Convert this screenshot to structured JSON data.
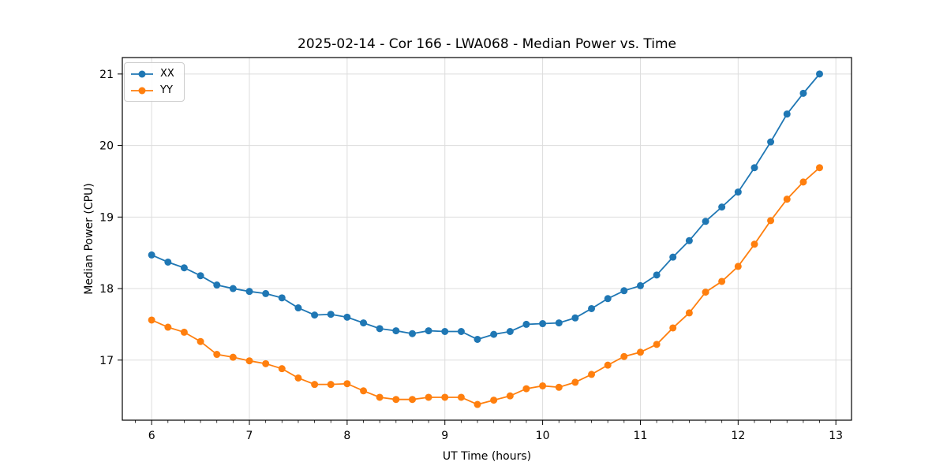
{
  "chart_data": {
    "type": "line",
    "title": "2025-02-14 - Cor 166 - LWA068 - Median Power vs. Time",
    "xlabel": "UT Time (hours)",
    "ylabel": "Median Power (CPU)",
    "xlim": [
      5.7,
      13.16
    ],
    "ylim": [
      16.16,
      21.23
    ],
    "x_ticks": [
      6,
      7,
      8,
      9,
      10,
      11,
      12,
      13
    ],
    "y_ticks": [
      17,
      18,
      19,
      20,
      21
    ],
    "x_minor_step": 0.1666667,
    "grid": true,
    "grid_color": "#dddddd",
    "legend_position": "upper left",
    "x": [
      6,
      6.167,
      6.333,
      6.5,
      6.667,
      6.833,
      7,
      7.167,
      7.333,
      7.5,
      7.667,
      7.833,
      8,
      8.167,
      8.333,
      8.5,
      8.667,
      8.833,
      9,
      9.167,
      9.333,
      9.5,
      9.667,
      9.833,
      10,
      10.167,
      10.333,
      10.5,
      10.667,
      10.833,
      11,
      11.167,
      11.333,
      11.5,
      11.667,
      11.833,
      12,
      12.167,
      12.333,
      12.5,
      12.667,
      12.833
    ],
    "series": [
      {
        "name": "XX",
        "color": "#1f77b4",
        "values": [
          18.47,
          18.37,
          18.29,
          18.18,
          18.05,
          18.0,
          17.96,
          17.93,
          17.87,
          17.73,
          17.63,
          17.64,
          17.6,
          17.52,
          17.44,
          17.41,
          17.37,
          17.41,
          17.4,
          17.4,
          17.29,
          17.36,
          17.4,
          17.5,
          17.51,
          17.52,
          17.59,
          17.72,
          17.86,
          17.97,
          18.04,
          18.19,
          18.44,
          18.67,
          18.94,
          19.14,
          19.35,
          19.69,
          20.05,
          20.44,
          20.73,
          21.0
        ]
      },
      {
        "name": "YY",
        "color": "#ff7f0e",
        "values": [
          17.56,
          17.46,
          17.39,
          17.26,
          17.08,
          17.04,
          16.99,
          16.95,
          16.88,
          16.75,
          16.66,
          16.66,
          16.67,
          16.57,
          16.48,
          16.45,
          16.45,
          16.48,
          16.48,
          16.48,
          16.38,
          16.44,
          16.5,
          16.6,
          16.64,
          16.62,
          16.69,
          16.8,
          16.93,
          17.05,
          17.11,
          17.22,
          17.45,
          17.66,
          17.95,
          18.1,
          18.31,
          18.62,
          18.95,
          19.25,
          19.49,
          19.69
        ]
      }
    ]
  }
}
